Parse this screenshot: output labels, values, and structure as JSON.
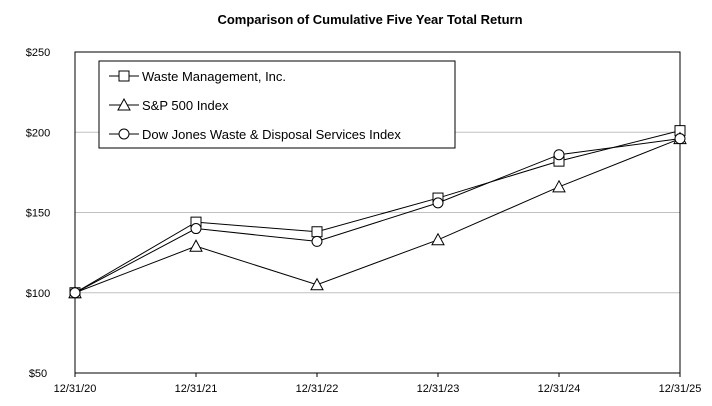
{
  "chart_data": {
    "type": "line",
    "title": "Comparison of Cumulative Five Year Total Return",
    "xlabel": "",
    "ylabel": "",
    "categories": [
      "12/31/20",
      "12/31/21",
      "12/31/22",
      "12/31/23",
      "12/31/24",
      "12/31/25"
    ],
    "y_ticks": [
      "$50",
      "$100",
      "$150",
      "$200",
      "$250"
    ],
    "ylim": [
      50,
      250
    ],
    "grid": true,
    "legend_position": "top-left",
    "series": [
      {
        "name": "Waste Management, Inc.",
        "marker": "square",
        "values": [
          100,
          144,
          138,
          159,
          182,
          201
        ]
      },
      {
        "name": "S&P 500 Index",
        "marker": "triangle",
        "values": [
          100,
          129,
          105,
          133,
          166,
          196
        ]
      },
      {
        "name": "Dow Jones Waste & Disposal Services Index",
        "marker": "circle",
        "values": [
          100,
          140,
          132,
          156,
          186,
          196
        ]
      }
    ],
    "colors": {
      "line": "#000000",
      "grid": "#c0c0c0"
    }
  }
}
